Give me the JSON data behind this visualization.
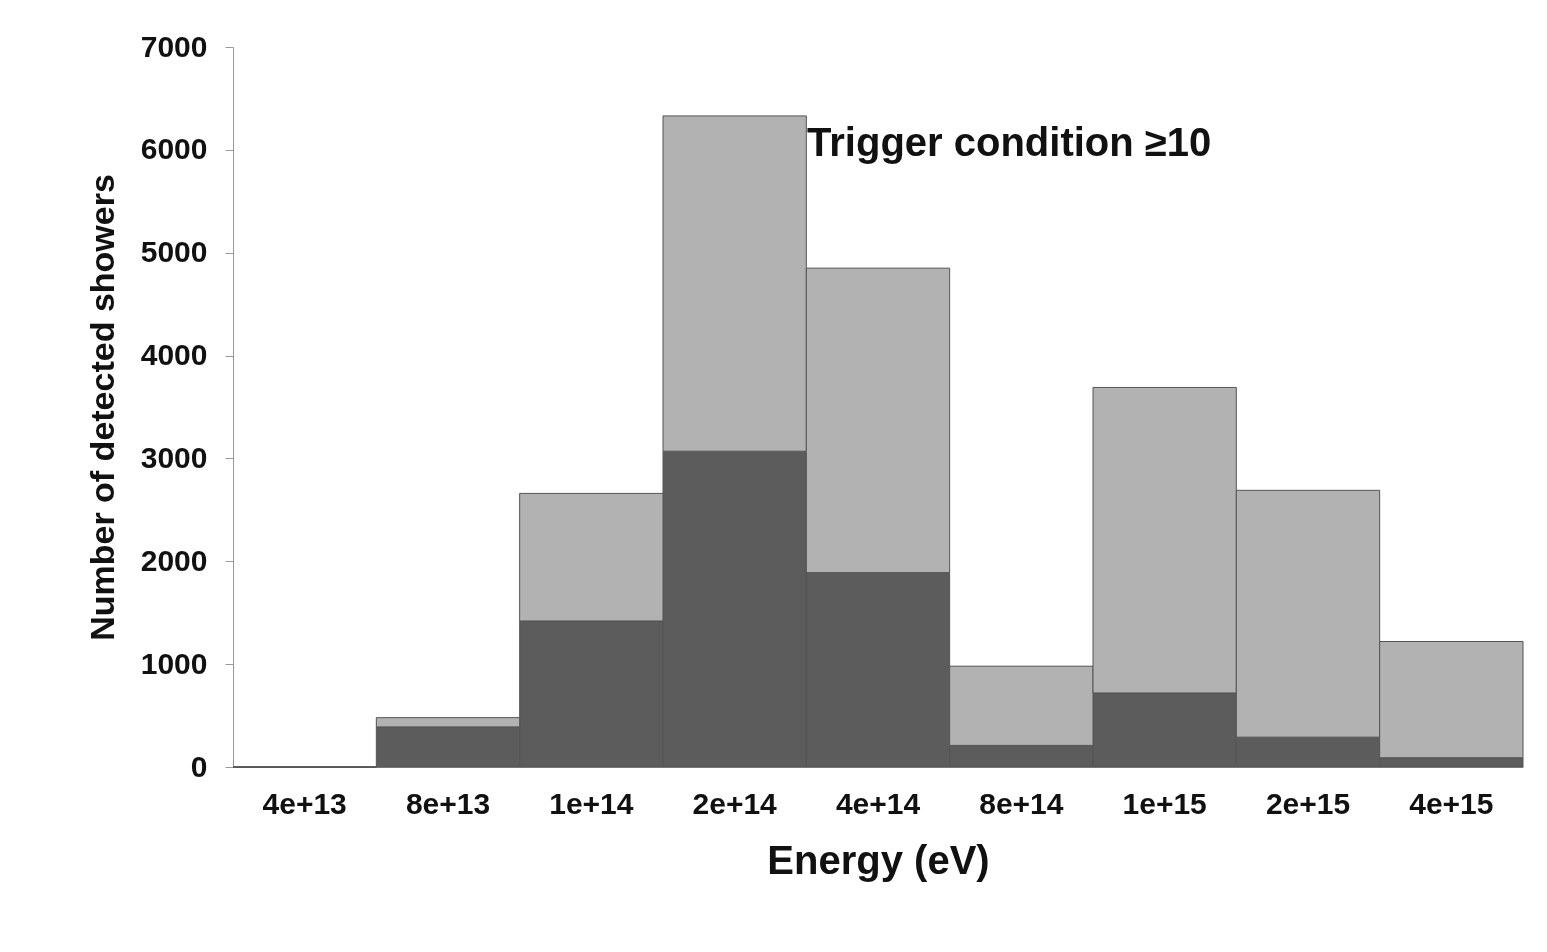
{
  "chart_data": {
    "type": "bar",
    "stacked": true,
    "xlabel": "Energy (eV)",
    "ylabel": "Number of detected showers",
    "categories": [
      "4e+13",
      "8e+13",
      "1e+14",
      "2e+14",
      "4e+14",
      "8e+14",
      "1e+15",
      "2e+15",
      "4e+15"
    ],
    "series": [
      {
        "color": "#5c5c5c",
        "values": [
          0,
          390,
          1420,
          3070,
          1890,
          210,
          720,
          290,
          90
        ]
      },
      {
        "color": "#b2b2b2",
        "values": [
          0,
          90,
          1240,
          3260,
          2960,
          770,
          2970,
          2400,
          1130
        ]
      }
    ],
    "ylim": [
      0,
      7000
    ],
    "yticks": [
      0,
      1000,
      2000,
      3000,
      4000,
      5000,
      6000,
      7000
    ],
    "grid": false,
    "annotations": [
      "Trigger condition ≥10"
    ]
  }
}
